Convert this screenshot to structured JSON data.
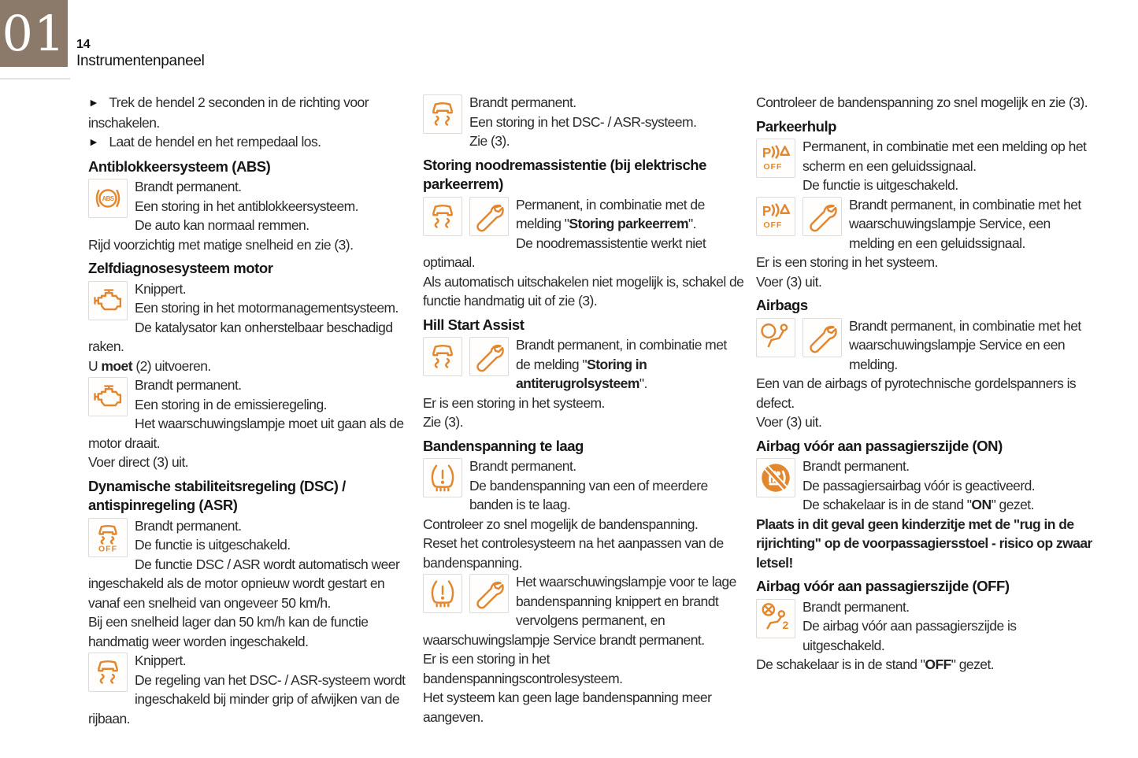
{
  "chapter": {
    "number": "01"
  },
  "header": {
    "page_number": "14",
    "title": "Instrumentenpaneel"
  },
  "colors": {
    "accent_orange": "#e2872e",
    "chapter_box_bg": "#8b7a6a",
    "body_text": "#2b2b2b",
    "icon_box_border": "#dcdcdc"
  },
  "icon_names": {
    "abs": "abs-warning-icon",
    "engine": "engine-warning-icon",
    "esc": "esc-skid-warning-icon",
    "esc-off": "esc-off-icon",
    "wrench": "service-wrench-icon",
    "tire": "tire-pressure-warning-icon",
    "park-off": "parking-assist-off-icon",
    "airbag": "airbag-warning-icon",
    "airbag-on": "passenger-airbag-on-icon",
    "airbag-off": "passenger-airbag-off-icon"
  },
  "columns": [
    {
      "blocks": [
        {
          "type": "bullets",
          "items": [
            "Trek de hendel 2 seconden in de richting voor inschakelen.",
            "Laat de hendel en het rempedaal los."
          ]
        },
        {
          "type": "heading",
          "text": "Antiblokkeersysteem (ABS)"
        },
        {
          "type": "entry",
          "icons": [
            "abs"
          ],
          "paragraphs": [
            "Brandt permanent.",
            "Een storing in het antiblokkeersysteem.",
            "De auto kan normaal remmen.",
            "Rijd voorzichtig met matige snelheid en zie (3)."
          ]
        },
        {
          "type": "heading",
          "text": "Zelfdiagnosesysteem motor"
        },
        {
          "type": "entry",
          "icons": [
            "engine"
          ],
          "paragraphs": [
            "Knippert.",
            "Een storing in het motormanagementsysteem.",
            "De katalysator kan onherstelbaar beschadigd raken.",
            [
              [
                "U ",
                false
              ],
              [
                "moet",
                true
              ],
              [
                " (2) uitvoeren.",
                false
              ]
            ]
          ]
        },
        {
          "type": "entry",
          "icons": [
            "engine"
          ],
          "paragraphs": [
            "Brandt permanent.",
            "Een storing in de emissieregeling.",
            "Het waarschuwingslampje moet uit gaan als de motor draait.",
            "Voer direct (3) uit."
          ]
        },
        {
          "type": "heading",
          "text": "Dynamische stabiliteitsregeling (DSC) / antispinregeling (ASR)"
        },
        {
          "type": "entry",
          "icons": [
            "esc-off"
          ],
          "paragraphs": [
            "Brandt permanent.",
            "De functie is uitgeschakeld.",
            "De functie DSC / ASR wordt automatisch weer ingeschakeld als de motor opnieuw wordt gestart en vanaf een snelheid van ongeveer 50 km/h.",
            "Bij een snelheid lager dan 50 km/h kan de functie handmatig weer worden ingeschakeld."
          ]
        },
        {
          "type": "entry",
          "icons": [
            "esc"
          ],
          "paragraphs": [
            "Knippert.",
            "De regeling van het DSC- / ASR-systeem wordt ingeschakeld bij minder grip of afwijken van de rijbaan."
          ]
        }
      ]
    },
    {
      "blocks": [
        {
          "type": "entry",
          "icons": [
            "esc"
          ],
          "paragraphs": [
            "Brandt permanent.",
            "Een storing in het DSC- / ASR-systeem.",
            "Zie (3)."
          ]
        },
        {
          "type": "heading",
          "text": "Storing noodremassistentie (bij elektrische parkeerrem)"
        },
        {
          "type": "entry",
          "icons": [
            "esc",
            "wrench"
          ],
          "paragraphs": [
            [
              [
                "Permanent, in combinatie met de melding \"",
                false
              ],
              [
                "Storing parkeerrem",
                true
              ],
              [
                "\".",
                false
              ]
            ],
            "De noodremassistentie werkt niet optimaal.",
            "Als automatisch uitschakelen niet mogelijk is, schakel de functie handmatig uit of zie (3)."
          ]
        },
        {
          "type": "heading",
          "text": "Hill Start Assist"
        },
        {
          "type": "entry",
          "icons": [
            "esc",
            "wrench"
          ],
          "paragraphs": [
            [
              [
                "Brandt permanent, in combinatie met de melding \"",
                false
              ],
              [
                "Storing in antiterugrolsysteem",
                true
              ],
              [
                "\".",
                false
              ]
            ],
            "Er is een storing in het systeem.",
            "Zie (3)."
          ]
        },
        {
          "type": "heading",
          "text": "Bandenspanning te laag"
        },
        {
          "type": "entry",
          "icons": [
            "tire"
          ],
          "paragraphs": [
            "Brandt permanent.",
            "De bandenspanning van een of meerdere banden is te laag.",
            "Controleer zo snel mogelijk de bandenspanning.",
            "Reset het controlesysteem na het aanpassen van de bandenspanning."
          ]
        },
        {
          "type": "entry",
          "icons": [
            "tire",
            "wrench"
          ],
          "paragraphs": [
            "Het waarschuwingslampje voor te lage bandenspanning knippert en brandt vervolgens permanent, en waarschuwingslampje Service brandt permanent.",
            "Er is een storing in het bandenspanningscontrolesysteem.",
            "Het systeem kan geen lage bandenspanning meer aangeven."
          ]
        }
      ]
    },
    {
      "blocks": [
        {
          "type": "entry",
          "icons": [],
          "paragraphs": [
            "Controleer de bandenspanning zo snel mogelijk en zie (3)."
          ]
        },
        {
          "type": "heading",
          "text": "Parkeerhulp"
        },
        {
          "type": "entry",
          "icons": [
            "park-off"
          ],
          "paragraphs": [
            "Permanent, in combinatie met een melding op het scherm en een geluidssignaal.",
            "De functie is uitgeschakeld."
          ]
        },
        {
          "type": "entry",
          "icons": [
            "park-off",
            "wrench"
          ],
          "paragraphs": [
            "Brandt permanent, in combinatie met het waarschuwingslampje Service, een melding en een geluidssignaal.",
            "Er is een storing in het systeem.",
            "Voer (3) uit."
          ]
        },
        {
          "type": "heading",
          "text": "Airbags"
        },
        {
          "type": "entry",
          "icons": [
            "airbag",
            "wrench"
          ],
          "paragraphs": [
            "Brandt permanent, in combinatie met het waarschuwingslampje Service en een melding.",
            "Een van de airbags of pyrotechnische gordelspanners is defect.",
            "Voer (3) uit."
          ]
        },
        {
          "type": "heading",
          "text": "Airbag vóór aan passagierszijde (ON)"
        },
        {
          "type": "entry",
          "icons": [
            "airbag-on"
          ],
          "paragraphs": [
            "Brandt permanent.",
            "De passagiersairbag vóór is geactiveerd.",
            [
              [
                "De schakelaar is in de stand \"",
                false
              ],
              [
                "ON",
                true
              ],
              [
                "\" gezet.",
                false
              ]
            ],
            [
              [
                "Plaats in dit geval geen kinderzitje met de \"rug in de rijrichting\" op de voorpassagiersstoel - risico op zwaar letsel!",
                true
              ]
            ]
          ]
        },
        {
          "type": "heading",
          "text": "Airbag vóór aan passagierszijde (OFF)"
        },
        {
          "type": "entry",
          "icons": [
            "airbag-off"
          ],
          "paragraphs": [
            "Brandt permanent.",
            "De airbag vóór aan passagierszijde is uitgeschakeld.",
            [
              [
                "De schakelaar is in de stand \"",
                false
              ],
              [
                "OFF",
                true
              ],
              [
                "\" gezet.",
                false
              ]
            ]
          ]
        }
      ]
    }
  ]
}
